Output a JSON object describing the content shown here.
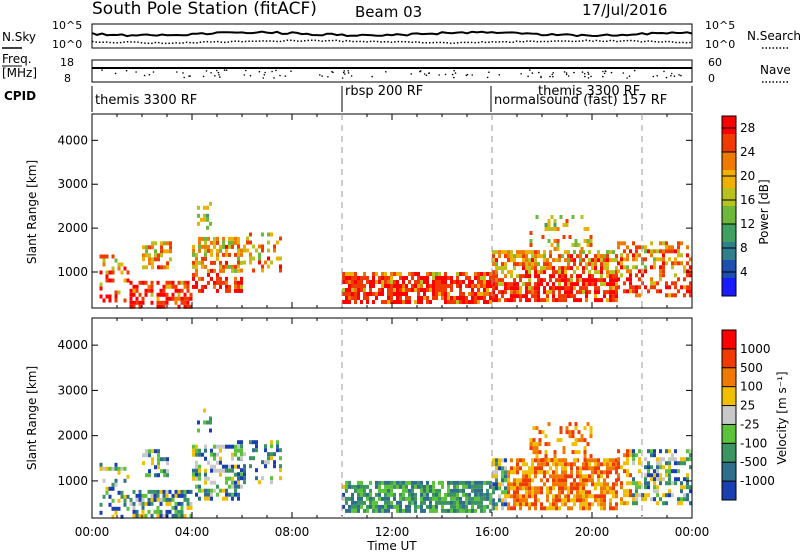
{
  "header": {
    "title": "South Pole Station (fitACF)",
    "beam": "Beam 03",
    "date": "17/Jul/2016"
  },
  "noise_panel": {
    "left_label": "N.Sky",
    "right_label": "N.Search",
    "left_ticks": [
      "10^5",
      "10^0"
    ],
    "right_ticks": [
      "10^5",
      "10^0"
    ]
  },
  "freq_panel": {
    "left_label_1": "Freq.",
    "left_label_2": "[MHz]",
    "right_label": "Nave",
    "left_ticks": [
      "18",
      "8"
    ],
    "right_ticks": [
      "60",
      "0"
    ]
  },
  "cpid_panel": {
    "label": "CPID",
    "segments": [
      {
        "name": "themis 3300 RF",
        "start_hour": 0,
        "end_hour": 10
      },
      {
        "name": "rbsp 200 RF",
        "start_hour": 10,
        "end_hour": 16
      },
      {
        "name": "normalsound (fast) 157 RF",
        "start_hour": 16,
        "end_hour": 24
      },
      {
        "name": "themis 3300 RF",
        "start_hour": 16,
        "end_hour": 24
      }
    ]
  },
  "chart_data": [
    {
      "type": "heatmap",
      "ylabel": "Slant Range [km]",
      "ylim": [
        180,
        4600
      ],
      "yticks": [
        "1000",
        "2000",
        "3000",
        "4000"
      ],
      "xlim_hours": [
        0,
        24
      ],
      "xticks": [
        "00:00",
        "04:00",
        "08:00",
        "12:00",
        "16:00",
        "20:00",
        "00:00"
      ],
      "colorbar_label": "Power [dB]",
      "colorbar_ticks": [
        "4",
        "8",
        "12",
        "16",
        "20",
        "24",
        "28"
      ],
      "colorbar_range": [
        0,
        30
      ],
      "colorbar_colors": [
        "#1a1aff",
        "#1c4fb0",
        "#2f7f8c",
        "#3fa060",
        "#6bb83a",
        "#b8c21e",
        "#f0b000",
        "#f07a00",
        "#f03a00",
        "#ff0000"
      ],
      "dashed_lines_hours": [
        10,
        16,
        22
      ]
    },
    {
      "type": "heatmap",
      "ylabel": "Slant Range [km]",
      "ylim": [
        180,
        4600
      ],
      "yticks": [
        "1000",
        "2000",
        "3000",
        "4000"
      ],
      "xlim_hours": [
        0,
        24
      ],
      "xticks": [
        "00:00",
        "04:00",
        "08:00",
        "12:00",
        "16:00",
        "20:00",
        "00:00"
      ],
      "xlabel": "Time UT",
      "colorbar_label": "Velocity [m s⁻¹]",
      "colorbar_ticks": [
        "1000",
        "500",
        "100",
        "25",
        "-25",
        "-100",
        "-500",
        "-1000"
      ],
      "colorbar_colors": [
        "#1a3fb0",
        "#2f6f8c",
        "#3c9460",
        "#5cc23a",
        "#c8c8c8",
        "#f0c000",
        "#f07a00",
        "#f03a00",
        "#ff0000"
      ],
      "dashed_lines_hours": [
        10,
        16,
        22
      ]
    }
  ]
}
